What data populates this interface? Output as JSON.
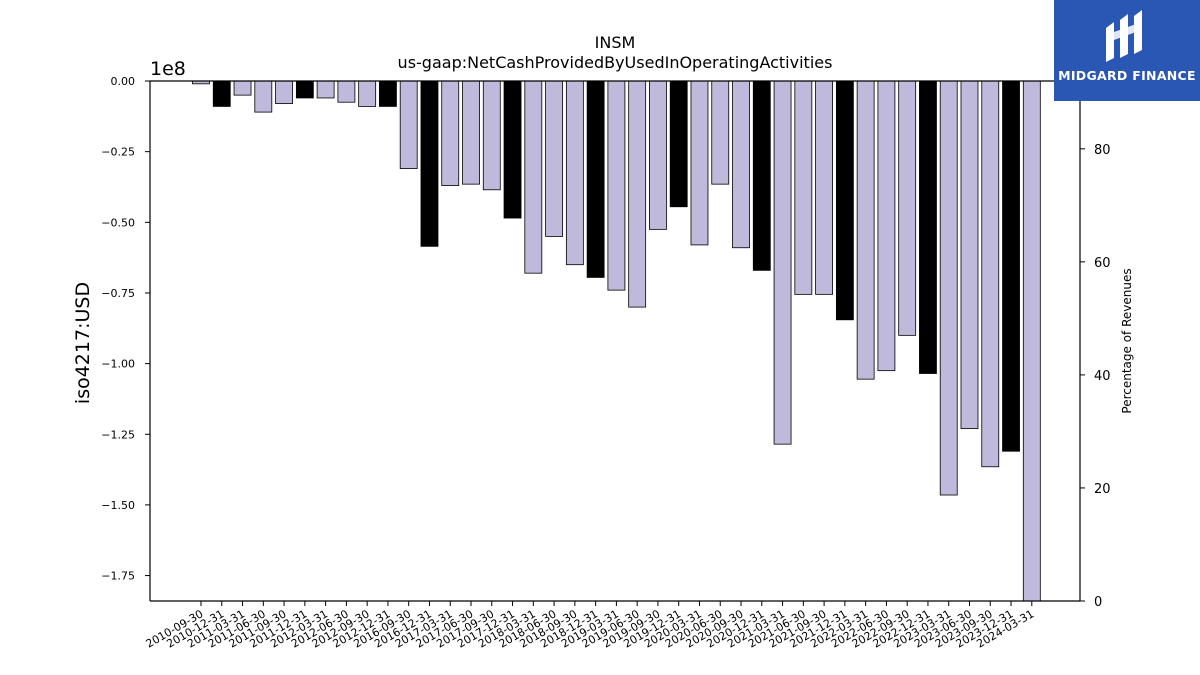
{
  "chart_data": {
    "type": "bar",
    "title": "INSM",
    "subtitle": "us-gaap:NetCashProvidedByUsedInOperatingActivities",
    "ylabel": "iso4217:USD",
    "y2label": "Percentage of Revenues",
    "offset_label": "1e8",
    "ylim": [
      -1.84,
      0.0
    ],
    "yticks": [
      0.0,
      -0.25,
      -0.5,
      -0.75,
      -1.0,
      -1.25,
      -1.5,
      -1.75
    ],
    "ytick_labels": [
      "0.00",
      "−0.25",
      "−0.50",
      "−0.75",
      "−1.00",
      "−1.25",
      "−1.50",
      "−1.75"
    ],
    "y2lim": [
      0,
      92
    ],
    "y2ticks": [
      0,
      20,
      40,
      60,
      80
    ],
    "y2tick_labels": [
      "0",
      "20",
      "40",
      "60",
      "80"
    ],
    "units": "1e8 USD",
    "categories": [
      "2010-09-30",
      "2010-12-31",
      "2011-03-31",
      "2011-06-30",
      "2011-09-30",
      "2011-12-31",
      "2012-03-31",
      "2012-06-30",
      "2012-09-30",
      "2012-12-31",
      "2016-09-30",
      "2016-12-31",
      "2017-03-31",
      "2017-06-30",
      "2017-09-30",
      "2017-12-31",
      "2018-03-31",
      "2018-06-30",
      "2018-09-30",
      "2018-12-31",
      "2019-03-31",
      "2019-06-30",
      "2019-09-30",
      "2019-12-31",
      "2020-03-31",
      "2020-06-30",
      "2020-09-30",
      "2020-12-31",
      "2021-03-31",
      "2021-06-30",
      "2021-09-30",
      "2021-12-31",
      "2022-03-31",
      "2022-06-30",
      "2022-09-30",
      "2022-12-31",
      "2023-03-31",
      "2023-06-30",
      "2023-09-30",
      "2023-12-31",
      "2024-03-31"
    ],
    "values": [
      -0.01,
      -0.09,
      -0.05,
      -0.11,
      -0.08,
      -0.06,
      -0.06,
      -0.075,
      -0.09,
      -0.09,
      -0.31,
      -0.585,
      -0.37,
      -0.365,
      -0.385,
      -0.485,
      -0.68,
      -0.55,
      -0.65,
      -0.695,
      -0.74,
      -0.8,
      -0.525,
      -0.445,
      -0.58,
      -0.365,
      -0.59,
      -0.67,
      -1.285,
      -0.755,
      -0.755,
      -0.845,
      -1.055,
      -1.025,
      -0.9,
      -1.035,
      -1.465,
      -1.23,
      -1.365,
      -1.31,
      -1.84
    ],
    "annual_flags": [
      false,
      true,
      false,
      false,
      false,
      true,
      false,
      false,
      false,
      true,
      false,
      true,
      false,
      false,
      false,
      true,
      false,
      false,
      false,
      true,
      false,
      false,
      false,
      true,
      false,
      false,
      false,
      true,
      false,
      false,
      false,
      true,
      false,
      false,
      false,
      true,
      false,
      false,
      false,
      true,
      false
    ],
    "colors": {
      "quarterly": "#bfbadb",
      "annual": "#000000",
      "edge": "#000000"
    },
    "legend": "none",
    "grid": false
  },
  "logo": {
    "text": "MIDGARD FINANCE",
    "background": "#2a56b4"
  }
}
